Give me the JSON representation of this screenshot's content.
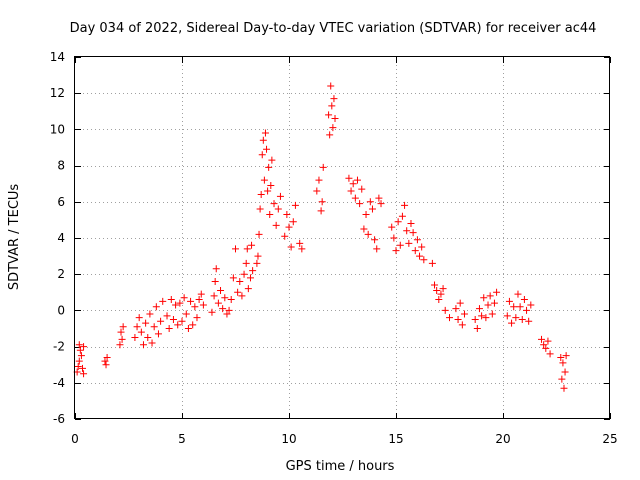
{
  "chart_data": {
    "type": "scatter",
    "title": "Day 034 of 2022, Sidereal Day-to-day VTEC variation (SDTVAR) for receiver ac44",
    "xlabel": "GPS time / hours",
    "ylabel": "SDTVAR / TECUs",
    "xlim": [
      0,
      25
    ],
    "ylim": [
      -6,
      14
    ],
    "xticks": [
      "0",
      "5",
      "10",
      "15",
      "20",
      "25"
    ],
    "yticks": [
      "-6",
      "-4",
      "-2",
      "0",
      "2",
      "4",
      "6",
      "8",
      "10",
      "12",
      "14"
    ],
    "grid": true,
    "marker": "+",
    "series": [
      {
        "name": "SDTVAR",
        "color": "#ff0000",
        "points": [
          [
            0.1,
            -3.4
          ],
          [
            0.15,
            -3.1
          ],
          [
            0.2,
            -2.8
          ],
          [
            0.2,
            -1.9
          ],
          [
            0.25,
            -2.2
          ],
          [
            0.3,
            -2.5
          ],
          [
            0.35,
            -3.2
          ],
          [
            0.4,
            -2.0
          ],
          [
            0.4,
            -3.5
          ],
          [
            1.4,
            -2.8
          ],
          [
            1.45,
            -3.0
          ],
          [
            1.5,
            -2.6
          ],
          [
            2.1,
            -1.9
          ],
          [
            2.15,
            -1.2
          ],
          [
            2.2,
            -1.6
          ],
          [
            2.25,
            -0.9
          ],
          [
            2.8,
            -1.5
          ],
          [
            2.9,
            -0.9
          ],
          [
            3.0,
            -0.4
          ],
          [
            3.1,
            -1.2
          ],
          [
            3.2,
            -1.9
          ],
          [
            3.3,
            -0.7
          ],
          [
            3.4,
            -1.5
          ],
          [
            3.5,
            -0.2
          ],
          [
            3.6,
            -1.8
          ],
          [
            3.7,
            -0.9
          ],
          [
            3.8,
            0.2
          ],
          [
            3.9,
            -1.3
          ],
          [
            4.0,
            -0.6
          ],
          [
            4.1,
            0.5
          ],
          [
            4.3,
            -0.3
          ],
          [
            4.4,
            -1.0
          ],
          [
            4.5,
            0.6
          ],
          [
            4.6,
            -0.5
          ],
          [
            4.7,
            0.3
          ],
          [
            4.8,
            -0.8
          ],
          [
            4.9,
            0.4
          ],
          [
            5.0,
            -0.6
          ],
          [
            5.1,
            0.7
          ],
          [
            5.2,
            -0.2
          ],
          [
            5.3,
            -1.0
          ],
          [
            5.4,
            0.5
          ],
          [
            5.5,
            -0.8
          ],
          [
            5.6,
            0.2
          ],
          [
            5.7,
            -0.4
          ],
          [
            5.8,
            0.6
          ],
          [
            5.9,
            0.9
          ],
          [
            6.0,
            0.3
          ],
          [
            6.4,
            -0.1
          ],
          [
            6.5,
            0.8
          ],
          [
            6.55,
            1.6
          ],
          [
            6.6,
            2.3
          ],
          [
            6.7,
            0.4
          ],
          [
            6.8,
            1.1
          ],
          [
            6.9,
            0.1
          ],
          [
            7.0,
            0.7
          ],
          [
            7.1,
            -0.2
          ],
          [
            7.2,
            0.0
          ],
          [
            7.3,
            0.6
          ],
          [
            7.4,
            1.8
          ],
          [
            7.5,
            3.4
          ],
          [
            7.6,
            1.0
          ],
          [
            7.7,
            1.6
          ],
          [
            7.8,
            0.8
          ],
          [
            7.9,
            2.0
          ],
          [
            8.0,
            2.6
          ],
          [
            8.05,
            3.4
          ],
          [
            8.1,
            1.2
          ],
          [
            8.2,
            1.8
          ],
          [
            8.25,
            3.6
          ],
          [
            8.3,
            2.2
          ],
          [
            8.5,
            2.6
          ],
          [
            8.55,
            3.0
          ],
          [
            8.6,
            4.2
          ],
          [
            8.65,
            5.6
          ],
          [
            8.7,
            6.4
          ],
          [
            8.75,
            8.6
          ],
          [
            8.8,
            9.4
          ],
          [
            8.85,
            7.2
          ],
          [
            8.9,
            9.8
          ],
          [
            8.95,
            8.9
          ],
          [
            9.0,
            6.6
          ],
          [
            9.05,
            7.9
          ],
          [
            9.1,
            5.3
          ],
          [
            9.15,
            6.9
          ],
          [
            9.2,
            8.3
          ],
          [
            9.3,
            5.9
          ],
          [
            9.4,
            4.7
          ],
          [
            9.5,
            5.6
          ],
          [
            9.6,
            6.3
          ],
          [
            9.8,
            4.1
          ],
          [
            9.9,
            5.3
          ],
          [
            10.0,
            4.6
          ],
          [
            10.1,
            3.5
          ],
          [
            10.2,
            4.9
          ],
          [
            10.3,
            5.8
          ],
          [
            10.5,
            3.7
          ],
          [
            10.6,
            3.4
          ],
          [
            11.3,
            6.6
          ],
          [
            11.4,
            7.2
          ],
          [
            11.5,
            5.5
          ],
          [
            11.55,
            6.0
          ],
          [
            11.6,
            7.9
          ],
          [
            11.85,
            10.8
          ],
          [
            11.9,
            9.7
          ],
          [
            11.95,
            12.4
          ],
          [
            12.0,
            11.3
          ],
          [
            12.05,
            10.1
          ],
          [
            12.1,
            11.7
          ],
          [
            12.15,
            10.6
          ],
          [
            12.8,
            7.3
          ],
          [
            12.9,
            6.6
          ],
          [
            13.0,
            7.0
          ],
          [
            13.1,
            6.2
          ],
          [
            13.2,
            7.2
          ],
          [
            13.3,
            5.9
          ],
          [
            13.4,
            6.7
          ],
          [
            13.5,
            4.5
          ],
          [
            13.6,
            5.3
          ],
          [
            13.7,
            4.2
          ],
          [
            13.8,
            6.0
          ],
          [
            13.9,
            5.6
          ],
          [
            14.0,
            3.9
          ],
          [
            14.1,
            3.4
          ],
          [
            14.2,
            6.2
          ],
          [
            14.3,
            5.9
          ],
          [
            14.8,
            4.6
          ],
          [
            14.9,
            4.0
          ],
          [
            15.0,
            3.3
          ],
          [
            15.1,
            4.9
          ],
          [
            15.2,
            3.6
          ],
          [
            15.3,
            5.2
          ],
          [
            15.4,
            5.8
          ],
          [
            15.5,
            4.4
          ],
          [
            15.6,
            3.7
          ],
          [
            15.7,
            4.8
          ],
          [
            15.8,
            4.3
          ],
          [
            15.9,
            3.3
          ],
          [
            16.0,
            3.9
          ],
          [
            16.1,
            3.0
          ],
          [
            16.2,
            3.5
          ],
          [
            16.3,
            2.8
          ],
          [
            16.7,
            2.6
          ],
          [
            16.8,
            1.4
          ],
          [
            16.9,
            1.1
          ],
          [
            17.0,
            0.6
          ],
          [
            17.1,
            0.9
          ],
          [
            17.2,
            1.2
          ],
          [
            17.3,
            0.0
          ],
          [
            17.5,
            -0.4
          ],
          [
            17.8,
            0.1
          ],
          [
            17.9,
            -0.5
          ],
          [
            18.0,
            0.4
          ],
          [
            18.1,
            -0.8
          ],
          [
            18.2,
            -0.2
          ],
          [
            18.7,
            -0.5
          ],
          [
            18.8,
            -1.0
          ],
          [
            18.9,
            0.1
          ],
          [
            19.0,
            -0.3
          ],
          [
            19.1,
            0.7
          ],
          [
            19.2,
            -0.4
          ],
          [
            19.3,
            0.3
          ],
          [
            19.4,
            0.8
          ],
          [
            19.5,
            -0.2
          ],
          [
            19.6,
            0.4
          ],
          [
            19.7,
            1.0
          ],
          [
            20.2,
            -0.3
          ],
          [
            20.3,
            0.5
          ],
          [
            20.4,
            -0.7
          ],
          [
            20.5,
            0.2
          ],
          [
            20.6,
            -0.4
          ],
          [
            20.7,
            0.9
          ],
          [
            20.8,
            0.2
          ],
          [
            20.9,
            -0.5
          ],
          [
            21.0,
            0.6
          ],
          [
            21.1,
            0.0
          ],
          [
            21.2,
            -0.6
          ],
          [
            21.3,
            0.3
          ],
          [
            21.8,
            -1.6
          ],
          [
            21.9,
            -1.9
          ],
          [
            22.0,
            -2.1
          ],
          [
            22.1,
            -1.7
          ],
          [
            22.2,
            -2.4
          ],
          [
            22.7,
            -2.6
          ],
          [
            22.75,
            -3.8
          ],
          [
            22.8,
            -2.9
          ],
          [
            22.85,
            -4.3
          ],
          [
            22.9,
            -3.4
          ],
          [
            22.95,
            -2.5
          ]
        ]
      }
    ]
  }
}
